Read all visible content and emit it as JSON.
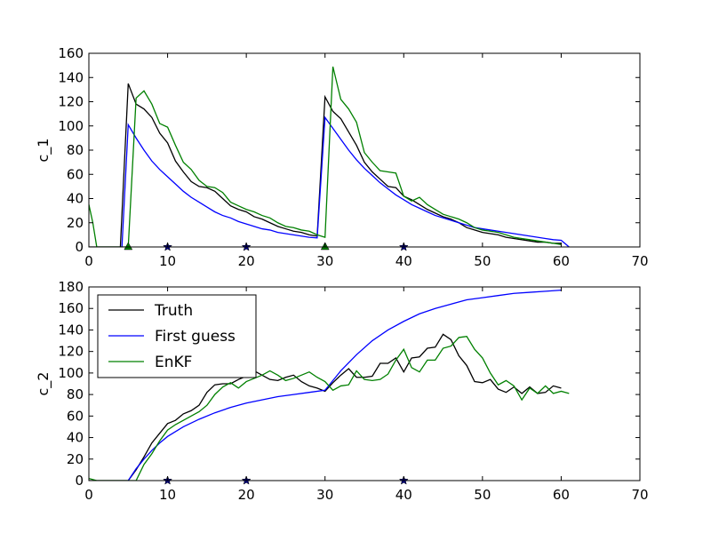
{
  "chart_data": [
    {
      "type": "line",
      "title": "",
      "xlabel": "",
      "ylabel": "c_1",
      "xlim": [
        0,
        70
      ],
      "ylim": [
        0,
        160
      ],
      "xticks": [
        0,
        10,
        20,
        30,
        40,
        50,
        60,
        70
      ],
      "yticks": [
        0,
        20,
        40,
        60,
        80,
        100,
        120,
        140,
        160
      ],
      "grid": false,
      "series": [
        {
          "name": "Truth",
          "color": "#000000",
          "x": [
            0,
            1,
            2,
            3,
            4,
            5,
            6,
            7,
            8,
            9,
            10,
            11,
            12,
            13,
            14,
            15,
            16,
            17,
            18,
            19,
            20,
            21,
            22,
            23,
            24,
            25,
            26,
            27,
            28,
            29,
            30,
            31,
            32,
            33,
            34,
            35,
            36,
            37,
            38,
            39,
            40,
            41,
            42,
            43,
            44,
            45,
            46,
            47,
            48,
            49,
            50,
            51,
            52,
            53,
            54,
            55,
            56,
            57,
            58,
            59,
            60
          ],
          "y": [
            0,
            0,
            0,
            0,
            0,
            135,
            118,
            114,
            107,
            94,
            86,
            71,
            62,
            54,
            50,
            49,
            46,
            40,
            34,
            31,
            29,
            25,
            23,
            20,
            17,
            15,
            13,
            12,
            10,
            9,
            124,
            112,
            106,
            95,
            84,
            70,
            62,
            56,
            50,
            49,
            42,
            39,
            35,
            31,
            28,
            25,
            23,
            20,
            16,
            14,
            12,
            11,
            10,
            8,
            7,
            6,
            5,
            4,
            4,
            3,
            3
          ]
        },
        {
          "name": "First guess",
          "color": "#0000ff",
          "x": [
            4.2,
            5,
            6,
            7,
            8,
            9,
            10,
            11,
            12,
            13,
            14,
            15,
            16,
            17,
            18,
            19,
            20,
            21,
            22,
            23,
            24,
            25,
            26,
            27,
            28,
            29,
            30,
            31,
            32,
            33,
            34,
            35,
            36,
            37,
            38,
            39,
            40,
            41,
            42,
            43,
            44,
            45,
            46,
            47,
            48,
            49,
            50,
            51,
            52,
            53,
            54,
            55,
            56,
            57,
            58,
            59,
            60,
            61
          ],
          "y": [
            0,
            101,
            90,
            80,
            71,
            64,
            58,
            52,
            46,
            41,
            37,
            33,
            29,
            26,
            24,
            21,
            19,
            17,
            15,
            14,
            12,
            11,
            10,
            9,
            8,
            7.5,
            107,
            98,
            89,
            80,
            72,
            65,
            59,
            53,
            48,
            43,
            39,
            35,
            32,
            29,
            26,
            24,
            22,
            20,
            18,
            16,
            15,
            14,
            13,
            12,
            11,
            10,
            9,
            8,
            7,
            6,
            5.5,
            0
          ]
        },
        {
          "name": "EnKF",
          "color": "#008000",
          "x": [
            0,
            0.5,
            1,
            2,
            3,
            4,
            5,
            6,
            7,
            8,
            9,
            10,
            11,
            12,
            13,
            14,
            15,
            16,
            17,
            18,
            19,
            20,
            21,
            22,
            23,
            24,
            25,
            26,
            27,
            28,
            29,
            30,
            31,
            32,
            33,
            34,
            35,
            36,
            37,
            38,
            39,
            40,
            41,
            42,
            43,
            44,
            45,
            46,
            47,
            48,
            49,
            50,
            51,
            52,
            53,
            54,
            55,
            56,
            57,
            58,
            59,
            60
          ],
          "y": [
            35,
            20,
            0,
            0,
            0,
            0,
            0,
            123,
            129,
            118,
            102,
            99,
            84,
            70,
            64,
            55,
            50,
            49,
            45,
            37,
            34,
            31,
            29,
            26,
            24,
            20,
            17,
            16,
            14,
            13,
            10,
            8,
            149,
            122,
            114,
            103,
            78,
            70,
            63,
            62,
            61,
            42,
            38,
            41,
            35,
            31,
            27,
            25,
            23,
            20,
            16,
            14,
            13,
            12,
            10,
            8,
            7,
            6,
            5,
            4,
            3,
            2
          ]
        }
      ],
      "markers": [
        {
          "x": 5,
          "y": 0,
          "shape": "triangle",
          "color": "#008000"
        },
        {
          "x": 10,
          "y": 0,
          "shape": "star",
          "color": "#000080"
        },
        {
          "x": 20,
          "y": 0,
          "shape": "star",
          "color": "#000080"
        },
        {
          "x": 30,
          "y": 0,
          "shape": "triangle",
          "color": "#008000"
        },
        {
          "x": 40,
          "y": 0,
          "shape": "star",
          "color": "#000080"
        }
      ]
    },
    {
      "type": "line",
      "title": "",
      "xlabel": "",
      "ylabel": "c_2",
      "xlim": [
        0,
        70
      ],
      "ylim": [
        0,
        180
      ],
      "xticks": [
        0,
        10,
        20,
        30,
        40,
        50,
        60,
        70
      ],
      "yticks": [
        0,
        20,
        40,
        60,
        80,
        100,
        120,
        140,
        160,
        180
      ],
      "grid": false,
      "legend": {
        "placement": "top-left",
        "entries": [
          "Truth",
          "First guess",
          "EnKF"
        ]
      },
      "series": [
        {
          "name": "Truth",
          "color": "#000000",
          "x": [
            0,
            1,
            2,
            3,
            4,
            5,
            6,
            7,
            8,
            9,
            10,
            11,
            12,
            13,
            14,
            15,
            16,
            17,
            18,
            19,
            20,
            21,
            22,
            23,
            24,
            25,
            26,
            27,
            28,
            29,
            30,
            31,
            32,
            33,
            34,
            35,
            36,
            37,
            38,
            39,
            40,
            41,
            42,
            43,
            44,
            45,
            46,
            47,
            48,
            49,
            50,
            51,
            52,
            53,
            54,
            55,
            56,
            57,
            58,
            59,
            60
          ],
          "y": [
            0,
            0,
            0,
            0,
            0,
            0,
            10,
            22,
            35,
            44,
            53,
            56,
            62,
            65,
            70,
            82,
            89,
            90,
            90,
            94,
            97,
            102,
            98,
            94,
            93,
            96,
            98,
            92,
            88,
            86,
            83,
            91,
            98,
            104,
            96,
            96,
            97,
            109,
            109,
            114,
            101,
            114,
            115,
            123,
            124,
            136,
            131,
            116,
            107,
            92,
            91,
            94,
            85,
            82,
            87,
            81,
            87,
            81,
            82,
            88,
            86
          ]
        },
        {
          "name": "First guess",
          "color": "#0000ff",
          "x": [
            5,
            6,
            7,
            8,
            9,
            10,
            12,
            14,
            16,
            18,
            20,
            22,
            24,
            26,
            28,
            30,
            32,
            34,
            36,
            38,
            40,
            42,
            44,
            46,
            48,
            50,
            52,
            54,
            56,
            58,
            60
          ],
          "y": [
            0,
            11,
            20,
            28,
            35,
            41,
            50,
            57,
            63,
            68,
            72,
            75,
            78,
            80,
            82,
            84,
            102,
            117,
            130,
            140,
            148,
            155,
            160,
            164,
            168,
            170,
            172,
            174,
            175,
            176,
            177
          ]
        },
        {
          "name": "EnKF",
          "color": "#008000",
          "x": [
            0,
            1,
            2,
            3,
            4,
            5,
            6,
            7,
            8,
            9,
            10,
            11,
            12,
            13,
            14,
            15,
            16,
            17,
            18,
            19,
            20,
            21,
            22,
            23,
            24,
            25,
            26,
            27,
            28,
            29,
            30,
            31,
            32,
            33,
            34,
            35,
            36,
            37,
            38,
            39,
            40,
            41,
            42,
            43,
            44,
            45,
            46,
            47,
            48,
            49,
            50,
            51,
            52,
            53,
            54,
            55,
            56,
            57,
            58,
            59,
            60,
            61
          ],
          "y": [
            2,
            0,
            0,
            0,
            0,
            0,
            0,
            15,
            25,
            37,
            47,
            52,
            56,
            60,
            64,
            70,
            80,
            87,
            91,
            86,
            92,
            95,
            98,
            102,
            98,
            93,
            95,
            98,
            101,
            96,
            92,
            84,
            88,
            89,
            102,
            94,
            93,
            94,
            99,
            112,
            122,
            105,
            101,
            112,
            112,
            123,
            125,
            133,
            134,
            122,
            114,
            100,
            89,
            93,
            88,
            75,
            86,
            81,
            88,
            81,
            83,
            81
          ]
        }
      ],
      "markers": [
        {
          "x": 10,
          "y": 0,
          "shape": "star",
          "color": "#000080"
        },
        {
          "x": 20,
          "y": 0,
          "shape": "star",
          "color": "#000080"
        },
        {
          "x": 40,
          "y": 0,
          "shape": "star",
          "color": "#000080"
        }
      ]
    }
  ]
}
